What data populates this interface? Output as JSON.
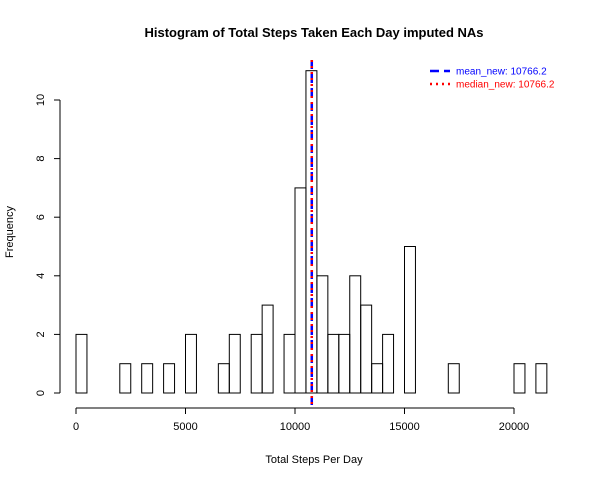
{
  "chart_data": {
    "type": "bar",
    "title": "Histogram of Total Steps Taken Each Day imputed NAs",
    "xlabel": "Total Steps Per Day",
    "ylabel": "Frequency",
    "xlim": [
      0,
      22000
    ],
    "ylim": [
      0,
      11.5
    ],
    "bin_width": 500,
    "bins": [
      {
        "start": 0,
        "count": 2
      },
      {
        "start": 2000,
        "count": 1
      },
      {
        "start": 3000,
        "count": 1
      },
      {
        "start": 4000,
        "count": 1
      },
      {
        "start": 5000,
        "count": 2
      },
      {
        "start": 6500,
        "count": 1
      },
      {
        "start": 7000,
        "count": 2
      },
      {
        "start": 8000,
        "count": 2
      },
      {
        "start": 8500,
        "count": 3
      },
      {
        "start": 9500,
        "count": 2
      },
      {
        "start": 10000,
        "count": 7
      },
      {
        "start": 10500,
        "count": 11
      },
      {
        "start": 11000,
        "count": 4
      },
      {
        "start": 11500,
        "count": 2
      },
      {
        "start": 12000,
        "count": 2
      },
      {
        "start": 12500,
        "count": 4
      },
      {
        "start": 13000,
        "count": 3
      },
      {
        "start": 13500,
        "count": 1
      },
      {
        "start": 14000,
        "count": 2
      },
      {
        "start": 15000,
        "count": 5
      },
      {
        "start": 17000,
        "count": 1
      },
      {
        "start": 20000,
        "count": 1
      },
      {
        "start": 21000,
        "count": 1
      }
    ],
    "x_ticks": [
      0,
      5000,
      10000,
      15000,
      20000
    ],
    "y_ticks": [
      0,
      2,
      4,
      6,
      8,
      10
    ],
    "reference_lines": [
      {
        "name": "mean_new",
        "value": 10766.2,
        "color": "#0000ff",
        "dash": "dashed"
      },
      {
        "name": "median_new",
        "value": 10766.2,
        "color": "#ff0000",
        "dash": "dotted"
      }
    ],
    "legend": {
      "placement": "top-right",
      "entries": [
        {
          "label": "mean_new:  10766.2",
          "color": "#0000ff"
        },
        {
          "label": "median_new:  10766.2",
          "color": "#ff0000"
        }
      ]
    },
    "grid": false
  }
}
